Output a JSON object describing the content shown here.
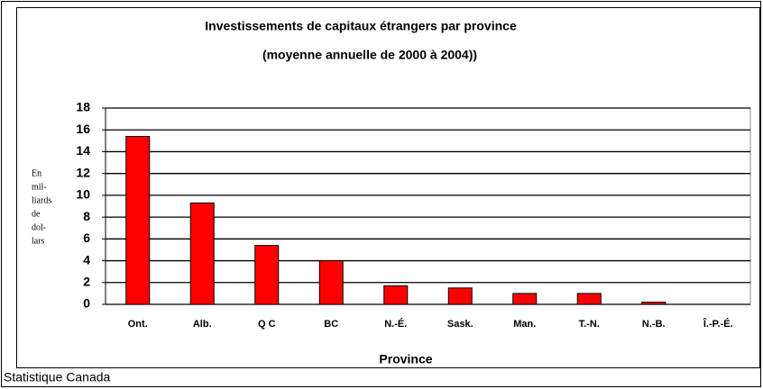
{
  "chart_data": {
    "type": "bar",
    "title": "Investissements de capitaux étrangers par province",
    "subtitle": "(moyenne annuelle de 2000 à 2004))",
    "ylabel": [
      "En",
      "mil-",
      "liards",
      "de",
      "dol-",
      "lars"
    ],
    "xlabel": "Province",
    "source": "Statistique Canada",
    "categories": [
      "Ont.",
      "Alb.",
      "Q C",
      "BC",
      "N.-É.",
      "Sask.",
      "Man.",
      "T.-N.",
      "N.-B.",
      "Î.-P.-É."
    ],
    "values": [
      15.4,
      9.3,
      5.4,
      4.0,
      1.7,
      1.5,
      1.0,
      1.0,
      0.2,
      0
    ],
    "color": "#ff0000",
    "ylim": [
      0,
      18
    ],
    "yticks": [
      0,
      2,
      4,
      6,
      8,
      10,
      12,
      14,
      16,
      18
    ],
    "grid": true
  }
}
